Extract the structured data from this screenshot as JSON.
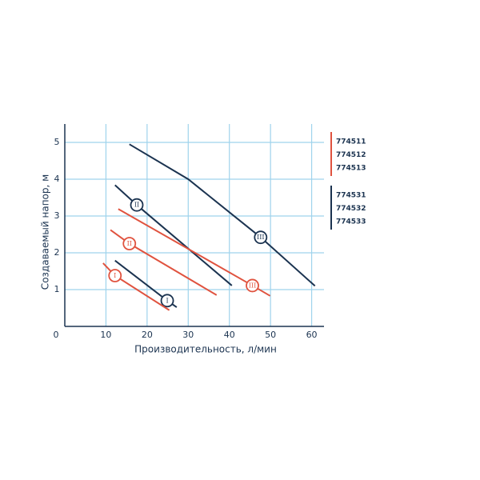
{
  "chart_data": {
    "type": "line",
    "x_label": "Производительность, л/мин",
    "y_label": "Создаваемый напор, м",
    "xlim": [
      0,
      63
    ],
    "ylim": [
      0,
      5.5
    ],
    "xticks": [
      0,
      10,
      20,
      30,
      40,
      50,
      60
    ],
    "yticks": [
      1,
      2,
      3,
      4,
      5
    ],
    "grid": true,
    "grid_color": "#9fd3ec",
    "axis_color": "#1b3350",
    "series": [
      {
        "name": "III",
        "color": "#1b3350",
        "x": [
          15.7,
          30,
          47.6,
          60.8
        ],
        "values": [
          4.95,
          4.0,
          2.42,
          1.1
        ]
      },
      {
        "name": "II",
        "color": "#1b3350",
        "x": [
          12.2,
          17.5,
          40.6
        ],
        "values": [
          3.84,
          3.3,
          1.11
        ]
      },
      {
        "name": "I",
        "color": "#1b3350",
        "x": [
          12.2,
          24.9,
          27.2
        ],
        "values": [
          1.79,
          0.7,
          0.52
        ]
      },
      {
        "name": "III",
        "color": "#e0533f",
        "x": [
          13,
          45.6,
          49.9
        ],
        "values": [
          3.19,
          1.11,
          0.83
        ]
      },
      {
        "name": "II",
        "color": "#e0533f",
        "x": [
          11.1,
          15.7,
          36.9
        ],
        "values": [
          2.62,
          2.25,
          0.85
        ]
      },
      {
        "name": "I",
        "color": "#e0533f",
        "x": [
          9.3,
          12.2,
          25.4
        ],
        "values": [
          1.72,
          1.38,
          0.44
        ]
      }
    ],
    "legend_groups": [
      {
        "color": "#e0533f",
        "models": [
          "774511",
          "774512",
          "774513"
        ]
      },
      {
        "color": "#1b3350",
        "models": [
          "774531",
          "774532",
          "774533"
        ]
      }
    ]
  }
}
